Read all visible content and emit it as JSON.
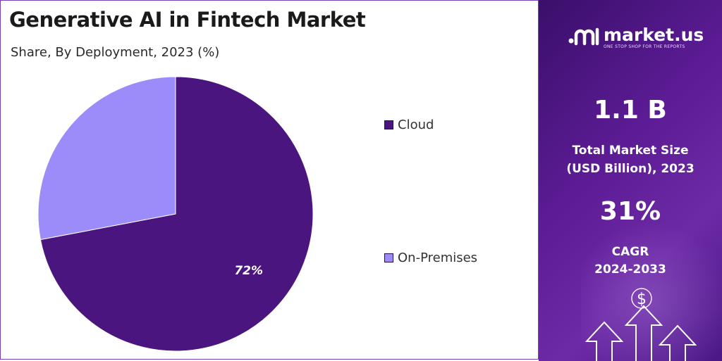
{
  "header": {
    "title": "Generative AI in Fintech Market",
    "subtitle": "Share, By Deployment, 2023 (%)"
  },
  "chart_data": {
    "type": "pie",
    "categories": [
      "Cloud",
      "On-Premises"
    ],
    "values": [
      72,
      28
    ],
    "data_labels": [
      "72%",
      ""
    ],
    "colors": [
      "#4b1580",
      "#9b8cfa"
    ],
    "legend_position": "right"
  },
  "brand": {
    "name": "market.us",
    "tagline": "ONE STOP SHOP FOR THE REPORTS"
  },
  "stats": {
    "market_size_value": "1.1 B",
    "market_size_label_line1": "Total Market Size",
    "market_size_label_line2": "(USD Billion), 2023",
    "cagr_value": "31%",
    "cagr_label_line1": "CAGR",
    "cagr_label_line2": "2024-2033"
  },
  "decor": {
    "dollar_glyph": "$"
  }
}
